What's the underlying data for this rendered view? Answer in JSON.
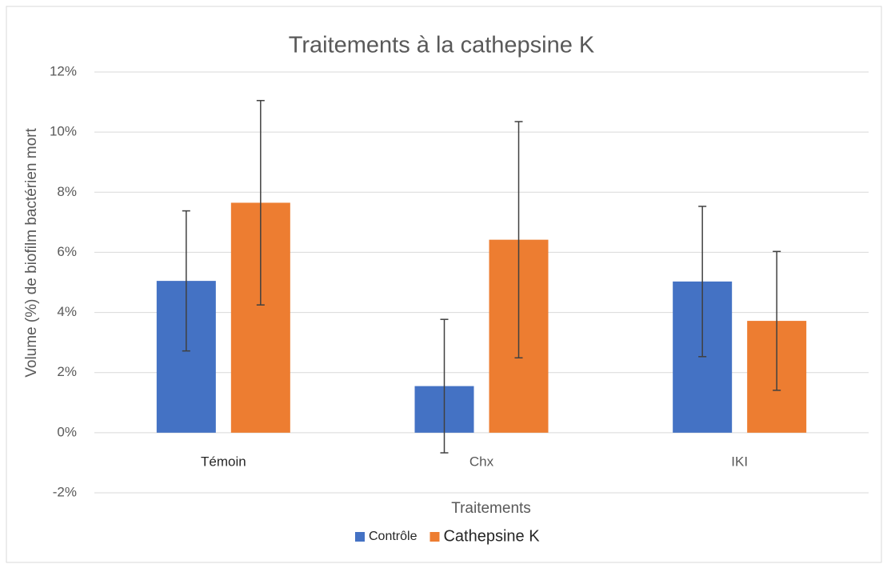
{
  "chart_data": {
    "type": "bar",
    "title": "Traitements à la cathepsine K",
    "x_label": "Traitements",
    "y_label": "Volume (%) de biofilm bactérien mort",
    "categories": [
      "Témoin",
      "Chx",
      "IKI"
    ],
    "series": [
      {
        "name": "Contrôle",
        "color": "#4472c4",
        "values": [
          5.05,
          1.55,
          5.03
        ],
        "errors": [
          2.33,
          2.22,
          2.5
        ]
      },
      {
        "name": "Cathepsine K",
        "color": "#ed7d31",
        "values": [
          7.65,
          6.42,
          3.72
        ],
        "errors": [
          3.4,
          3.93,
          2.31
        ]
      }
    ],
    "ylim": [
      -2,
      12
    ],
    "yticks": [
      {
        "value": -2,
        "label": "-2%"
      },
      {
        "value": 0,
        "label": "0%"
      },
      {
        "value": 2,
        "label": "2%"
      },
      {
        "value": 4,
        "label": "4%"
      },
      {
        "value": 6,
        "label": "6%"
      },
      {
        "value": 8,
        "label": "8%"
      },
      {
        "value": 10,
        "label": "10%"
      },
      {
        "value": 12,
        "label": "12%"
      }
    ],
    "grid": true,
    "legend": "bottom"
  }
}
